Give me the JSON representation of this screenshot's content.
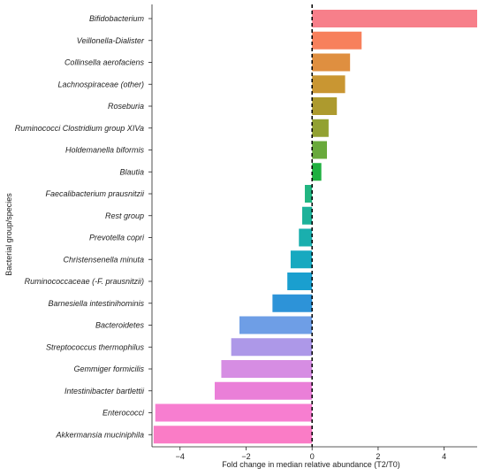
{
  "chart_data": {
    "type": "bar",
    "orientation": "horizontal",
    "xlabel": "Fold change in median relative abundance (T2/T0)",
    "ylabel": "Bacterial group/species",
    "xlim": [
      -4.85,
      5.0
    ],
    "xticks": [
      -4,
      -2,
      0,
      2,
      4
    ],
    "zero_line": "dashed",
    "grid": false,
    "categories": [
      "Bifidobacterium",
      "Veillonella-Dialister",
      "Collinsella aerofaciens",
      "Lachnospiraceae (other)",
      "Roseburia",
      "Ruminococci Clostridium group XIVa",
      "Holdemanella biformis",
      "Blautia",
      "Faecalibacterium prausnitzii",
      "Rest group",
      "Prevotella copri",
      "Christensenella minuta",
      "Ruminococcaceae (-F. prausnitzii)",
      "Barnesiella intestinihominis",
      "Bacteroidetes",
      "Streptococcus thermophilus",
      "Gemmiger formicilis",
      "Intestinibacter bartlettii",
      "Enterococci",
      "Akkermansia muciniphila"
    ],
    "values": [
      5.0,
      1.5,
      1.15,
      1.0,
      0.75,
      0.5,
      0.45,
      0.28,
      -0.22,
      -0.3,
      -0.4,
      -0.65,
      -0.75,
      -1.2,
      -2.2,
      -2.45,
      -2.75,
      -2.95,
      -4.75,
      -4.8
    ],
    "colors": [
      "#f77f8a",
      "#f7805c",
      "#df8f40",
      "#c99632",
      "#ad9a2e",
      "#92a132",
      "#69a93b",
      "#1fb040",
      "#21b581",
      "#1db29a",
      "#1aafae",
      "#17a9c0",
      "#1a9fcf",
      "#2d93d8",
      "#6e9ee6",
      "#ad98e8",
      "#d68de3",
      "#ea7fd8",
      "#f77ed0",
      "#fa7cc6"
    ]
  }
}
